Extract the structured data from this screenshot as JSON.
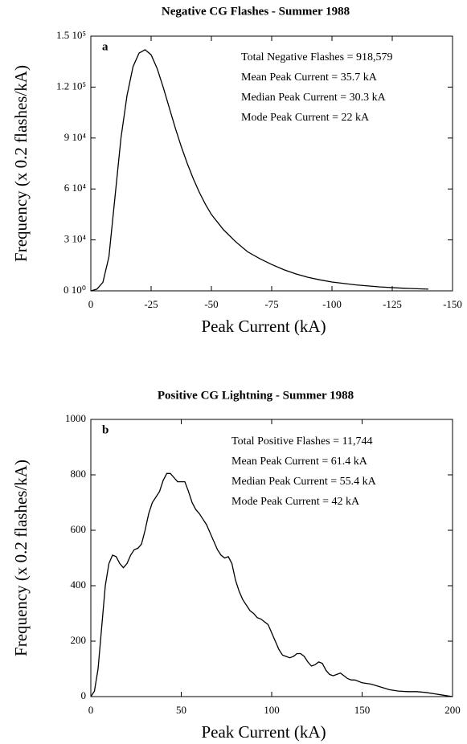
{
  "chart_data": [
    {
      "type": "line",
      "title": "Negative CG Flashes - Summer 1988",
      "x_label": "Peak Current (kA)",
      "y_label": "Frequency (x 0.2 flashes/kA)",
      "panel_label": "a",
      "annotations": [
        "Total Negative Flashes = 918,579",
        "Mean Peak Current = 35.7 kA",
        "Median Peak Current = 30.3 kA",
        "Mode Peak Current = 22 kA"
      ],
      "color": "#000000",
      "x": [
        0,
        -2.5,
        -5,
        -7.5,
        -10,
        -12.5,
        -15,
        -17.5,
        -20,
        -22.5,
        -25,
        -27.5,
        -30,
        -32.5,
        -35,
        -37.5,
        -40,
        -42.5,
        -45,
        -47.5,
        -50,
        -55,
        -60,
        -65,
        -70,
        -75,
        -80,
        -85,
        -90,
        -95,
        -100,
        -110,
        -120,
        -130,
        -140
      ],
      "values": [
        0,
        1000,
        5000,
        20000,
        55000,
        90000,
        115000,
        132000,
        140000,
        142000,
        139000,
        131000,
        120000,
        108000,
        96000,
        85000,
        75000,
        66000,
        58000,
        51000,
        45000,
        36000,
        29000,
        23000,
        19000,
        15500,
        12500,
        10000,
        8000,
        6500,
        5200,
        3500,
        2300,
        1500,
        1000
      ],
      "xlim": [
        0,
        -150
      ],
      "xticks": [
        0,
        -25,
        -50,
        -75,
        -100,
        -125,
        -150
      ],
      "ylim": [
        0,
        150000
      ],
      "yticks": [
        {
          "value": 0,
          "label": "0 10⁰"
        },
        {
          "value": 30000,
          "label": "3 10⁴"
        },
        {
          "value": 60000,
          "label": "6 10⁴"
        },
        {
          "value": 90000,
          "label": "9 10⁴"
        },
        {
          "value": 120000,
          "label": "1.2 10⁵"
        },
        {
          "value": 150000,
          "label": "1.5 10⁵"
        }
      ]
    },
    {
      "type": "line",
      "title": "Positive CG Lightning - Summer 1988",
      "x_label": "Peak Current (kA)",
      "y_label": "Frequency (x 0.2 flashes/kA)",
      "panel_label": "b",
      "annotations": [
        "Total Positive Flashes = 11,744",
        "Mean Peak Current = 61.4 kA",
        "Median Peak Current = 55.4 kA",
        "Mode Peak Current = 42 kA"
      ],
      "color": "#000000",
      "x": [
        0,
        2,
        4,
        6,
        8,
        10,
        12,
        14,
        16,
        18,
        20,
        22,
        24,
        26,
        28,
        30,
        32,
        34,
        36,
        38,
        40,
        42,
        44,
        46,
        48,
        50,
        52,
        54,
        56,
        58,
        60,
        62,
        64,
        66,
        68,
        70,
        72,
        74,
        76,
        78,
        80,
        82,
        84,
        86,
        88,
        90,
        92,
        94,
        96,
        98,
        100,
        102,
        104,
        106,
        108,
        110,
        112,
        114,
        116,
        118,
        120,
        122,
        124,
        126,
        128,
        130,
        132,
        134,
        136,
        138,
        140,
        142,
        144,
        146,
        148,
        150,
        155,
        160,
        165,
        170,
        175,
        180,
        185,
        190,
        195,
        200
      ],
      "values": [
        0,
        20,
        100,
        250,
        400,
        480,
        510,
        505,
        480,
        465,
        480,
        510,
        530,
        535,
        550,
        600,
        660,
        700,
        720,
        740,
        780,
        805,
        805,
        790,
        775,
        775,
        775,
        740,
        700,
        675,
        660,
        640,
        620,
        590,
        560,
        530,
        510,
        500,
        505,
        480,
        420,
        380,
        350,
        330,
        310,
        300,
        285,
        280,
        270,
        260,
        230,
        200,
        170,
        150,
        145,
        140,
        145,
        155,
        155,
        145,
        125,
        110,
        115,
        125,
        120,
        95,
        80,
        75,
        80,
        85,
        75,
        65,
        60,
        60,
        55,
        50,
        45,
        35,
        25,
        20,
        18,
        18,
        15,
        10,
        5,
        0
      ],
      "xlim": [
        0,
        200
      ],
      "xticks": [
        0,
        50,
        100,
        150,
        200
      ],
      "ylim": [
        0,
        1000
      ],
      "yticks": [
        0,
        200,
        400,
        600,
        800,
        1000
      ]
    }
  ]
}
